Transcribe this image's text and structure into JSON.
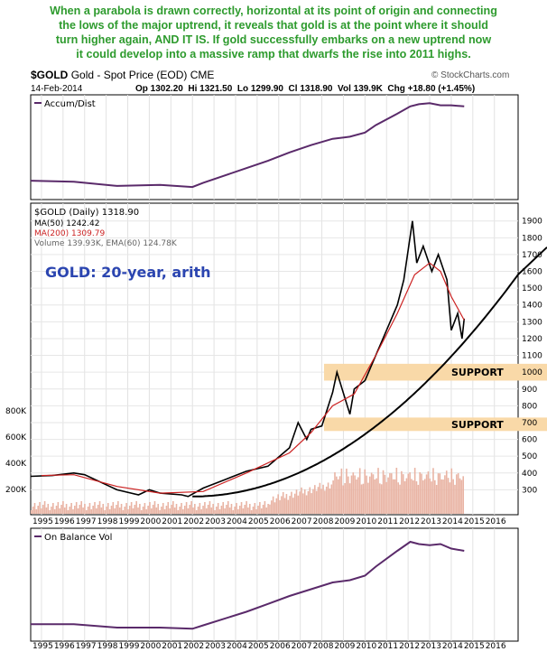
{
  "headline": [
    "When a parabola is drawn correctly, horizontal at its point of origin and connecting",
    "the lows of the major uptrend, it reveals that gold is at the point where it should",
    "turn higher again, AND IT IS. If gold successfully embarks on a new uptrend now",
    "it could develop into a massive ramp that dwarfs the rise into 2011 highs."
  ],
  "header": {
    "symbol": "$GOLD",
    "name": "Gold - Spot Price (EOD)",
    "exchange": "CME",
    "credit": "© StockCharts.com",
    "date": "14-Feb-2014",
    "ohlc": "Op 1302.20  Hi 1321.50  Lo 1299.90  Cl 1318.90  Vol 139.9K  Chg +18.80 (+1.45%)"
  },
  "colors": {
    "price": "#000000",
    "ma50": "#000000",
    "ma200": "#cc2222",
    "indicator": "#5a2a6a",
    "support": "#f9d9a8",
    "annotation": "#2b45b0",
    "volume": "#e9b4a4"
  },
  "chart_data": [
    {
      "type": "line",
      "title": "Accum/Dist",
      "x": [
        1994.0,
        1996,
        1998,
        2000,
        2001.5,
        2002,
        2004,
        2005,
        2006,
        2007,
        2008,
        2008.8,
        2009.5,
        2010,
        2011,
        2011.6,
        2012,
        2012.5,
        2013,
        2013.5,
        2014.1
      ],
      "values": [
        18,
        17,
        13,
        14,
        12,
        16,
        30,
        37,
        45,
        52,
        58,
        60,
        64,
        71,
        82,
        89,
        91,
        92,
        90,
        90,
        89
      ]
    },
    {
      "type": "line",
      "title": "$GOLD (Daily) 1318.90",
      "annotation": "GOLD: 20-year, arith",
      "legend": [
        "$GOLD (Daily) 1318.90",
        "MA(50) 1242.42",
        "MA(200) 1309.79",
        "Volume 139.93K, EMA(60) 124.78K"
      ],
      "legend_placement": "top-left",
      "y_ticks": [
        300,
        400,
        500,
        600,
        700,
        800,
        900,
        1000,
        1100,
        1200,
        1300,
        1400,
        1500,
        1600,
        1700,
        1800,
        1900
      ],
      "volume_ticks": [
        "200K",
        "400K",
        "600K",
        "800K"
      ],
      "x_ticks": [
        "1995",
        "1996",
        "1997",
        "1998",
        "1999",
        "2000",
        "2001",
        "2002",
        "2003",
        "2004",
        "2005",
        "2006",
        "2007",
        "2008",
        "2009",
        "2010",
        "2011",
        "2012",
        "2013",
        "2014",
        "2015",
        "2016"
      ],
      "series": [
        {
          "name": "$GOLD (Daily)",
          "x": [
            1994.0,
            1995,
            1996,
            1996.5,
            1997.5,
            1998,
            1999,
            1999.5,
            2000,
            2001,
            2001.3,
            2002,
            2003,
            2004,
            2005,
            2006,
            2006.4,
            2006.8,
            2007,
            2007.5,
            2008,
            2008.2,
            2008.8,
            2009,
            2009.5,
            2010,
            2010.5,
            2011,
            2011.3,
            2011.7,
            2011.9,
            2012.2,
            2012.6,
            2012.9,
            2013.3,
            2013.5,
            2013.8,
            2014.0,
            2014.1
          ],
          "values": [
            380,
            385,
            400,
            390,
            330,
            300,
            270,
            300,
            280,
            270,
            260,
            310,
            360,
            410,
            440,
            550,
            700,
            600,
            660,
            680,
            880,
            1000,
            750,
            900,
            950,
            1100,
            1250,
            1400,
            1550,
            1900,
            1650,
            1750,
            1600,
            1700,
            1550,
            1250,
            1350,
            1200,
            1319
          ]
        },
        {
          "name": "MA(200)",
          "x": [
            1994.5,
            1996,
            1998,
            2000,
            2002,
            2004,
            2006,
            2007,
            2008,
            2009,
            2010,
            2011,
            2011.8,
            2012.5,
            2013,
            2013.5,
            2014.1
          ],
          "values": [
            385,
            390,
            320,
            280,
            290,
            400,
            520,
            640,
            800,
            870,
            1100,
            1350,
            1580,
            1650,
            1600,
            1450,
            1310
          ]
        }
      ],
      "support_zones": [
        {
          "label": "SUPPORT",
          "from": 950,
          "to": 1050
        },
        {
          "label": "SUPPORT",
          "from": 650,
          "to": 730
        }
      ],
      "parabola": {
        "origin_year": 2001.5,
        "origin_price": 260,
        "through_year": 2014.1,
        "through_price": 1180
      }
    },
    {
      "type": "line",
      "title": "On Balance Vol",
      "x": [
        1994.0,
        1996,
        1998,
        2000,
        2001.5,
        2002,
        2004,
        2005,
        2006,
        2007,
        2008,
        2008.8,
        2009.5,
        2010,
        2011,
        2011.6,
        2012,
        2012.5,
        2013,
        2013.5,
        2014.1
      ],
      "values": [
        15,
        15,
        12,
        12,
        11,
        14,
        26,
        33,
        40,
        46,
        52,
        54,
        58,
        66,
        80,
        88,
        86,
        85,
        86,
        82,
        80
      ]
    }
  ]
}
